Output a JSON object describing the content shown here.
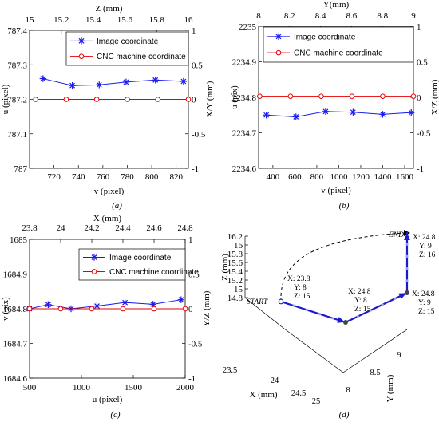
{
  "chart_data": [
    {
      "type": "line",
      "panel_label": "(a)",
      "xlabel": "v (pixel)",
      "ylabel": "u (pixel)",
      "ylabel_right": "X/Y (mm)",
      "xlabel_top": "Z (mm)",
      "xlim": [
        700,
        830
      ],
      "ylim": [
        787,
        787.4
      ],
      "ylim_right": [
        -1,
        1
      ],
      "xlim_top": [
        15,
        16
      ],
      "x_ticks": [
        "720",
        "740",
        "760",
        "780",
        "800",
        "820"
      ],
      "y_ticks": [
        "787",
        "787.1",
        "787.2",
        "787.3",
        "787.4"
      ],
      "y_ticks_right": [
        "-1",
        "-0.5",
        "0",
        "0.5",
        "1"
      ],
      "x_ticks_top": [
        "15",
        "15.2",
        "15.4",
        "15.6",
        "15.8",
        "16"
      ],
      "legend": [
        "Image coordinate",
        "CNC machine coordinate"
      ],
      "series": [
        {
          "name": "Image coordinate",
          "x": [
            711,
            735,
            757,
            779,
            803,
            826
          ],
          "y": [
            787.26,
            787.24,
            787.242,
            787.25,
            787.256,
            787.252
          ]
        },
        {
          "name": "CNC machine coordinate",
          "x": [
            705,
            730,
            755,
            780,
            805,
            830
          ],
          "y": [
            787.2,
            787.2,
            787.2,
            787.2,
            787.2,
            787.2
          ]
        }
      ]
    },
    {
      "type": "line",
      "panel_label": "(b)",
      "xlabel": "v (pixel)",
      "ylabel": "u (pix)",
      "ylabel_right": "X/Z (mm)",
      "xlabel_top": "Y(mm)",
      "xlim": [
        270,
        1680
      ],
      "ylim": [
        2234.6,
        2235
      ],
      "ylim_right": [
        -1,
        1
      ],
      "xlim_top": [
        8,
        9
      ],
      "x_ticks": [
        "400",
        "600",
        "800",
        "1000",
        "1200",
        "1400",
        "1600"
      ],
      "y_ticks": [
        "2234.6",
        "2234.7",
        "2234.8",
        "2234.9",
        "2235"
      ],
      "y_ticks_right": [
        "-1",
        "-0.5",
        "0",
        "0.5",
        "1"
      ],
      "x_ticks_top": [
        "8",
        "8.2",
        "8.4",
        "8.6",
        "8.8",
        "9"
      ],
      "legend": [
        "Image coordinate",
        "CNC machine coordinate"
      ],
      "series": [
        {
          "name": "Image coordinate",
          "x": [
            340,
            610,
            880,
            1130,
            1400,
            1660
          ],
          "y": [
            2234.75,
            2234.745,
            2234.76,
            2234.758,
            2234.752,
            2234.757
          ]
        },
        {
          "name": "CNC machine coordinate",
          "x": [
            280,
            560,
            840,
            1120,
            1400,
            1680
          ],
          "y": [
            2234.803,
            2234.803,
            2234.803,
            2234.803,
            2234.803,
            2234.803
          ]
        }
      ]
    },
    {
      "type": "line",
      "panel_label": "(c)",
      "xlabel": "u (pixel)",
      "ylabel": "v (pix)",
      "ylabel_right": "Y/Z (mm)",
      "xlabel_top": "X (mm)",
      "xlim": [
        500,
        2000
      ],
      "ylim": [
        1684.6,
        1685
      ],
      "ylim_right": [
        -1,
        1
      ],
      "xlim_top": [
        23.8,
        24.8
      ],
      "x_ticks": [
        "500",
        "1000",
        "1500",
        "2000"
      ],
      "y_ticks": [
        "1684.6",
        "1684.7",
        "1684.8",
        "1684.9",
        "1685"
      ],
      "y_ticks_right": [
        "-1",
        "-0.5",
        "0",
        "0.5",
        "1"
      ],
      "x_ticks_top": [
        "23.8",
        "24",
        "24.2",
        "24.4",
        "24.6",
        "24.8"
      ],
      "legend": [
        "Image coordinate",
        "CNC machine coordinate"
      ],
      "series": [
        {
          "name": "Image coordinate",
          "x": [
            500,
            680,
            900,
            1150,
            1420,
            1690,
            1960
          ],
          "y": [
            1684.8,
            1684.812,
            1684.8,
            1684.808,
            1684.818,
            1684.813,
            1684.826
          ]
        },
        {
          "name": "CNC machine coordinate",
          "x": [
            500,
            800,
            1100,
            1400,
            1700,
            2000
          ],
          "y": [
            1684.8,
            1684.8,
            1684.8,
            1684.8,
            1684.8,
            1684.8
          ]
        }
      ]
    },
    {
      "type": "line3d",
      "panel_label": "(d)",
      "zlabel": "Z (mm)",
      "xlabel": "X (mm)",
      "ylabel": "Y (mm)",
      "z_ticks": [
        "14.8",
        "15",
        "15.2",
        "15.4",
        "15.6",
        "15.8",
        "16",
        "16.2"
      ],
      "x_ticks": [
        "23.5",
        "24",
        "24.5",
        "25"
      ],
      "y_ticks": [
        "8",
        "8.5",
        "9"
      ],
      "start_label": "START",
      "end_label": "END",
      "points": [
        {
          "x": 23.8,
          "y": 8,
          "z": 15,
          "label_lines": [
            "X: 23.8",
            "Y: 8",
            "Z: 15"
          ]
        },
        {
          "x": 24.8,
          "y": 8,
          "z": 15,
          "label_lines": [
            "X: 24.8",
            "Y: 8",
            "Z: 15"
          ]
        },
        {
          "x": 24.8,
          "y": 9,
          "z": 15,
          "label_lines": [
            "X: 24.8",
            "Y: 9",
            "Z: 15"
          ]
        },
        {
          "x": 24.8,
          "y": 9,
          "z": 16,
          "label_lines": [
            "X: 24.8",
            "Y: 9",
            "Z: 16"
          ]
        }
      ]
    }
  ],
  "colors": {
    "image": "#1a1aee",
    "cnc": "#e60000",
    "path": "#1a1ad0",
    "path_dot": "#a0a0e8"
  }
}
